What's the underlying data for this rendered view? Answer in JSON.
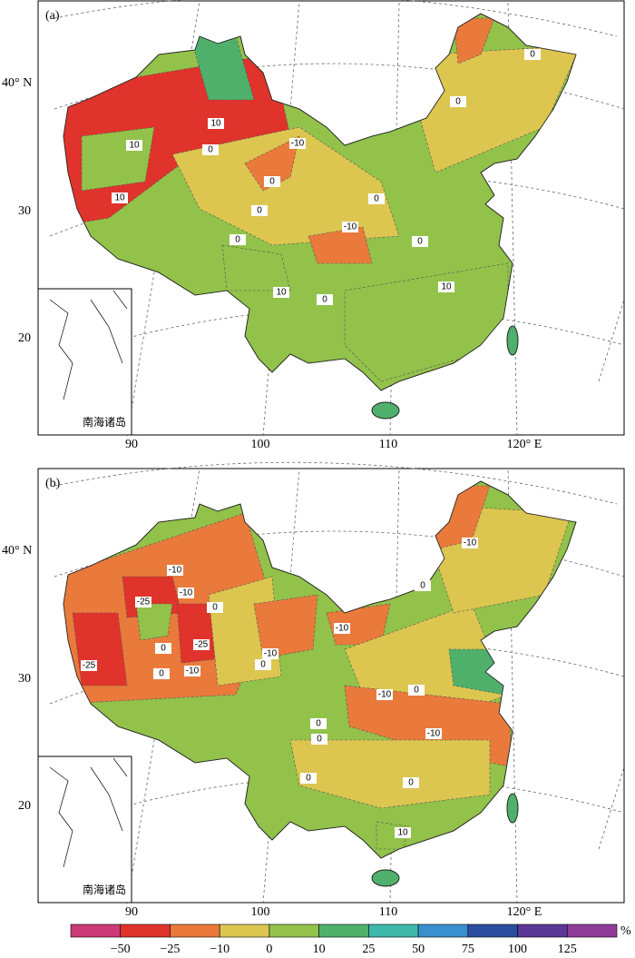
{
  "panels": [
    {
      "label": "(a)",
      "lat_labels": [
        "40° N",
        "30",
        "20"
      ],
      "lon_labels": [
        "90",
        "100",
        "110",
        "120° E"
      ],
      "inset_label": "南海诸岛",
      "contour_labels": [
        "10",
        "10",
        "10",
        "0",
        "-10",
        "0",
        "0",
        "-10",
        "0",
        "0",
        "0",
        "10",
        "0",
        "10",
        "0",
        "0"
      ]
    },
    {
      "label": "(b)",
      "lat_labels": [
        "40° N",
        "30",
        "20"
      ],
      "lon_labels": [
        "90",
        "100",
        "110",
        "120° E"
      ],
      "inset_label": "南海诸岛",
      "contour_labels": [
        "-10",
        "-25",
        "-10",
        "0",
        "-25",
        "0",
        "0",
        "-10",
        "-25",
        "-10",
        "0",
        "-10",
        "-10",
        "0",
        "-10",
        "0",
        "0",
        "0",
        "-10",
        "0",
        "0",
        "10"
      ]
    }
  ],
  "colorbar": {
    "colors": [
      "#cc3a78",
      "#e0332b",
      "#e97a3b",
      "#dcc650",
      "#92c24a",
      "#4fb06c",
      "#3db8aa",
      "#3a8fcf",
      "#2b4f9e",
      "#5a3796",
      "#8e3c98"
    ],
    "ticks": [
      {
        "value": -50,
        "label": "−50"
      },
      {
        "value": -25,
        "label": "−25"
      },
      {
        "value": -10,
        "label": "−10"
      },
      0,
      10,
      25,
      50,
      75,
      100,
      125
    ],
    "unit": "%"
  }
}
